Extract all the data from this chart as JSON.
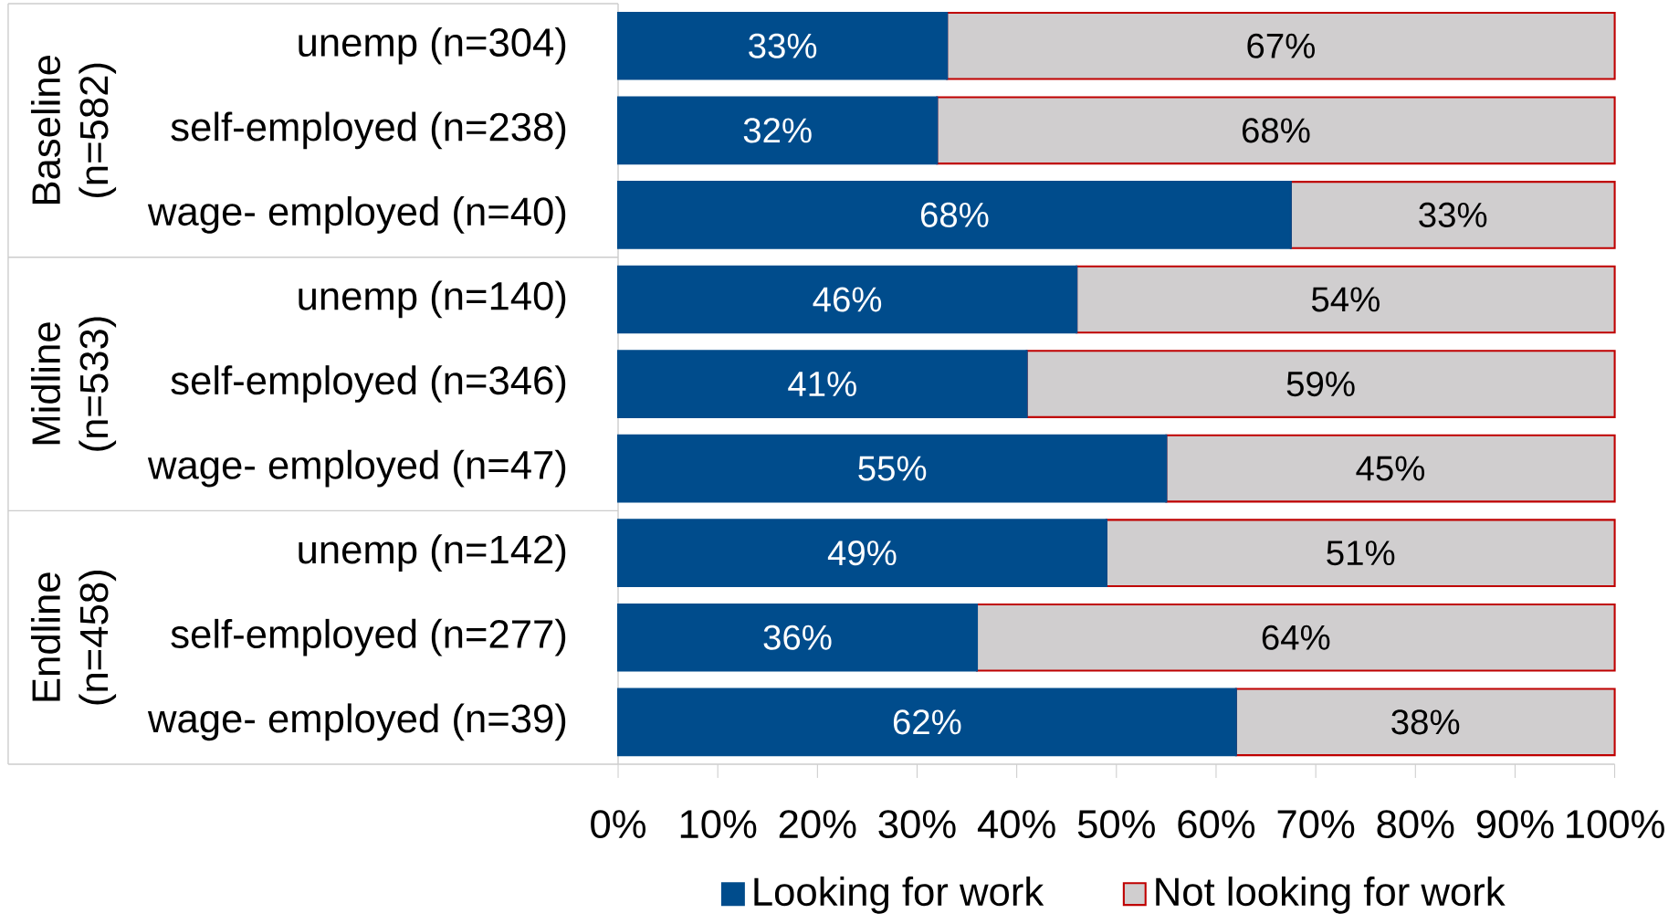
{
  "chart_data": {
    "type": "bar",
    "orientation": "horizontal",
    "stacked": true,
    "categories": [
      "unemp (n=304)",
      "self-employed (n=238)",
      "wage- employed (n=40)",
      "unemp (n=140)",
      "self-employed (n=346)",
      "wage- employed (n=47)",
      "unemp (n=142)",
      "self-employed (n=277)",
      "wage- employed (n=39)"
    ],
    "series": [
      {
        "name": "Looking for work",
        "color": "#004c8c",
        "values": [
          33,
          32,
          67.5,
          46,
          41,
          55,
          49,
          36,
          62
        ],
        "value_labels": [
          "33%",
          "32%",
          "68%",
          "46%",
          "41%",
          "55%",
          "49%",
          "36%",
          "62%"
        ]
      },
      {
        "name": "Not looking for work",
        "color": "#d0cecf",
        "values": [
          67,
          68,
          32.5,
          54,
          59,
          45,
          51,
          64,
          38
        ],
        "value_labels": [
          "67%",
          "68%",
          "33%",
          "54%",
          "59%",
          "45%",
          "51%",
          "64%",
          "38%"
        ]
      }
    ],
    "xlim": [
      0,
      100
    ],
    "xticks": [
      {
        "value": 0,
        "label": "0%"
      },
      {
        "value": 10,
        "label": "10%"
      },
      {
        "value": 20,
        "label": "20%"
      },
      {
        "value": 30,
        "label": "30%"
      },
      {
        "value": 40,
        "label": "40%"
      },
      {
        "value": 50,
        "label": "50%"
      },
      {
        "value": 60,
        "label": "60%"
      },
      {
        "value": 70,
        "label": "70%"
      },
      {
        "value": 80,
        "label": "80%"
      },
      {
        "value": 90,
        "label": "90%"
      },
      {
        "value": 100,
        "label": "100%"
      }
    ],
    "annotations": [
      "Baseline (n=582)",
      "Midline (n=533)",
      "Endline (n=458)"
    ],
    "legend": "bottom",
    "grid": false
  }
}
